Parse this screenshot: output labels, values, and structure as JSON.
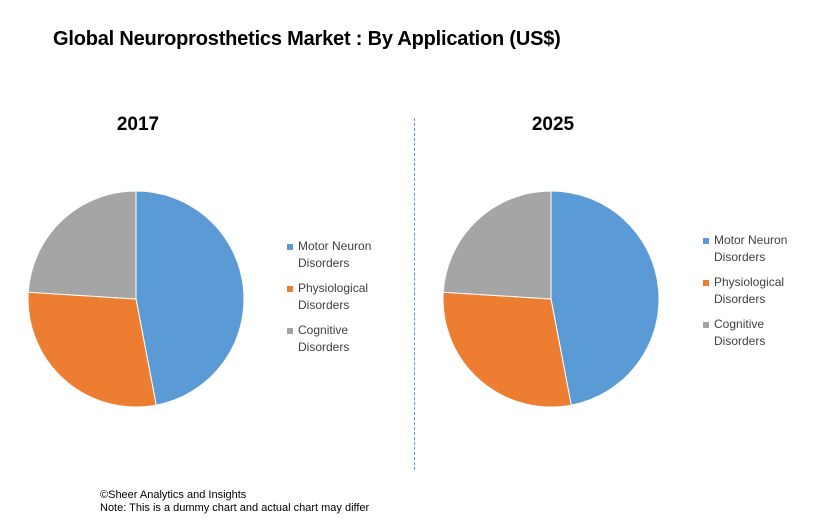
{
  "title": "Global Neuroprosthetics Market : By Application (US$)",
  "footer": {
    "credit": "©Sheer Analytics and Insights",
    "note": "Note: This is a dummy chart and actual chart may differ"
  },
  "chart_data": [
    {
      "type": "pie",
      "title": "2017",
      "categories": [
        "Motor Neuron Disorders",
        "Physiological Disorders",
        "Cognitive Disorders"
      ],
      "values": [
        47,
        29,
        24
      ],
      "colors": [
        "#5b9bd5",
        "#ed7d31",
        "#a5a5a5"
      ],
      "legend_position": "right"
    },
    {
      "type": "pie",
      "title": "2025",
      "categories": [
        "Motor Neuron Disorders",
        "Physiological Disorders",
        "Cognitive Disorders"
      ],
      "values": [
        47,
        29,
        24
      ],
      "colors": [
        "#5b9bd5",
        "#ed7d31",
        "#a5a5a5"
      ],
      "legend_position": "right"
    }
  ]
}
